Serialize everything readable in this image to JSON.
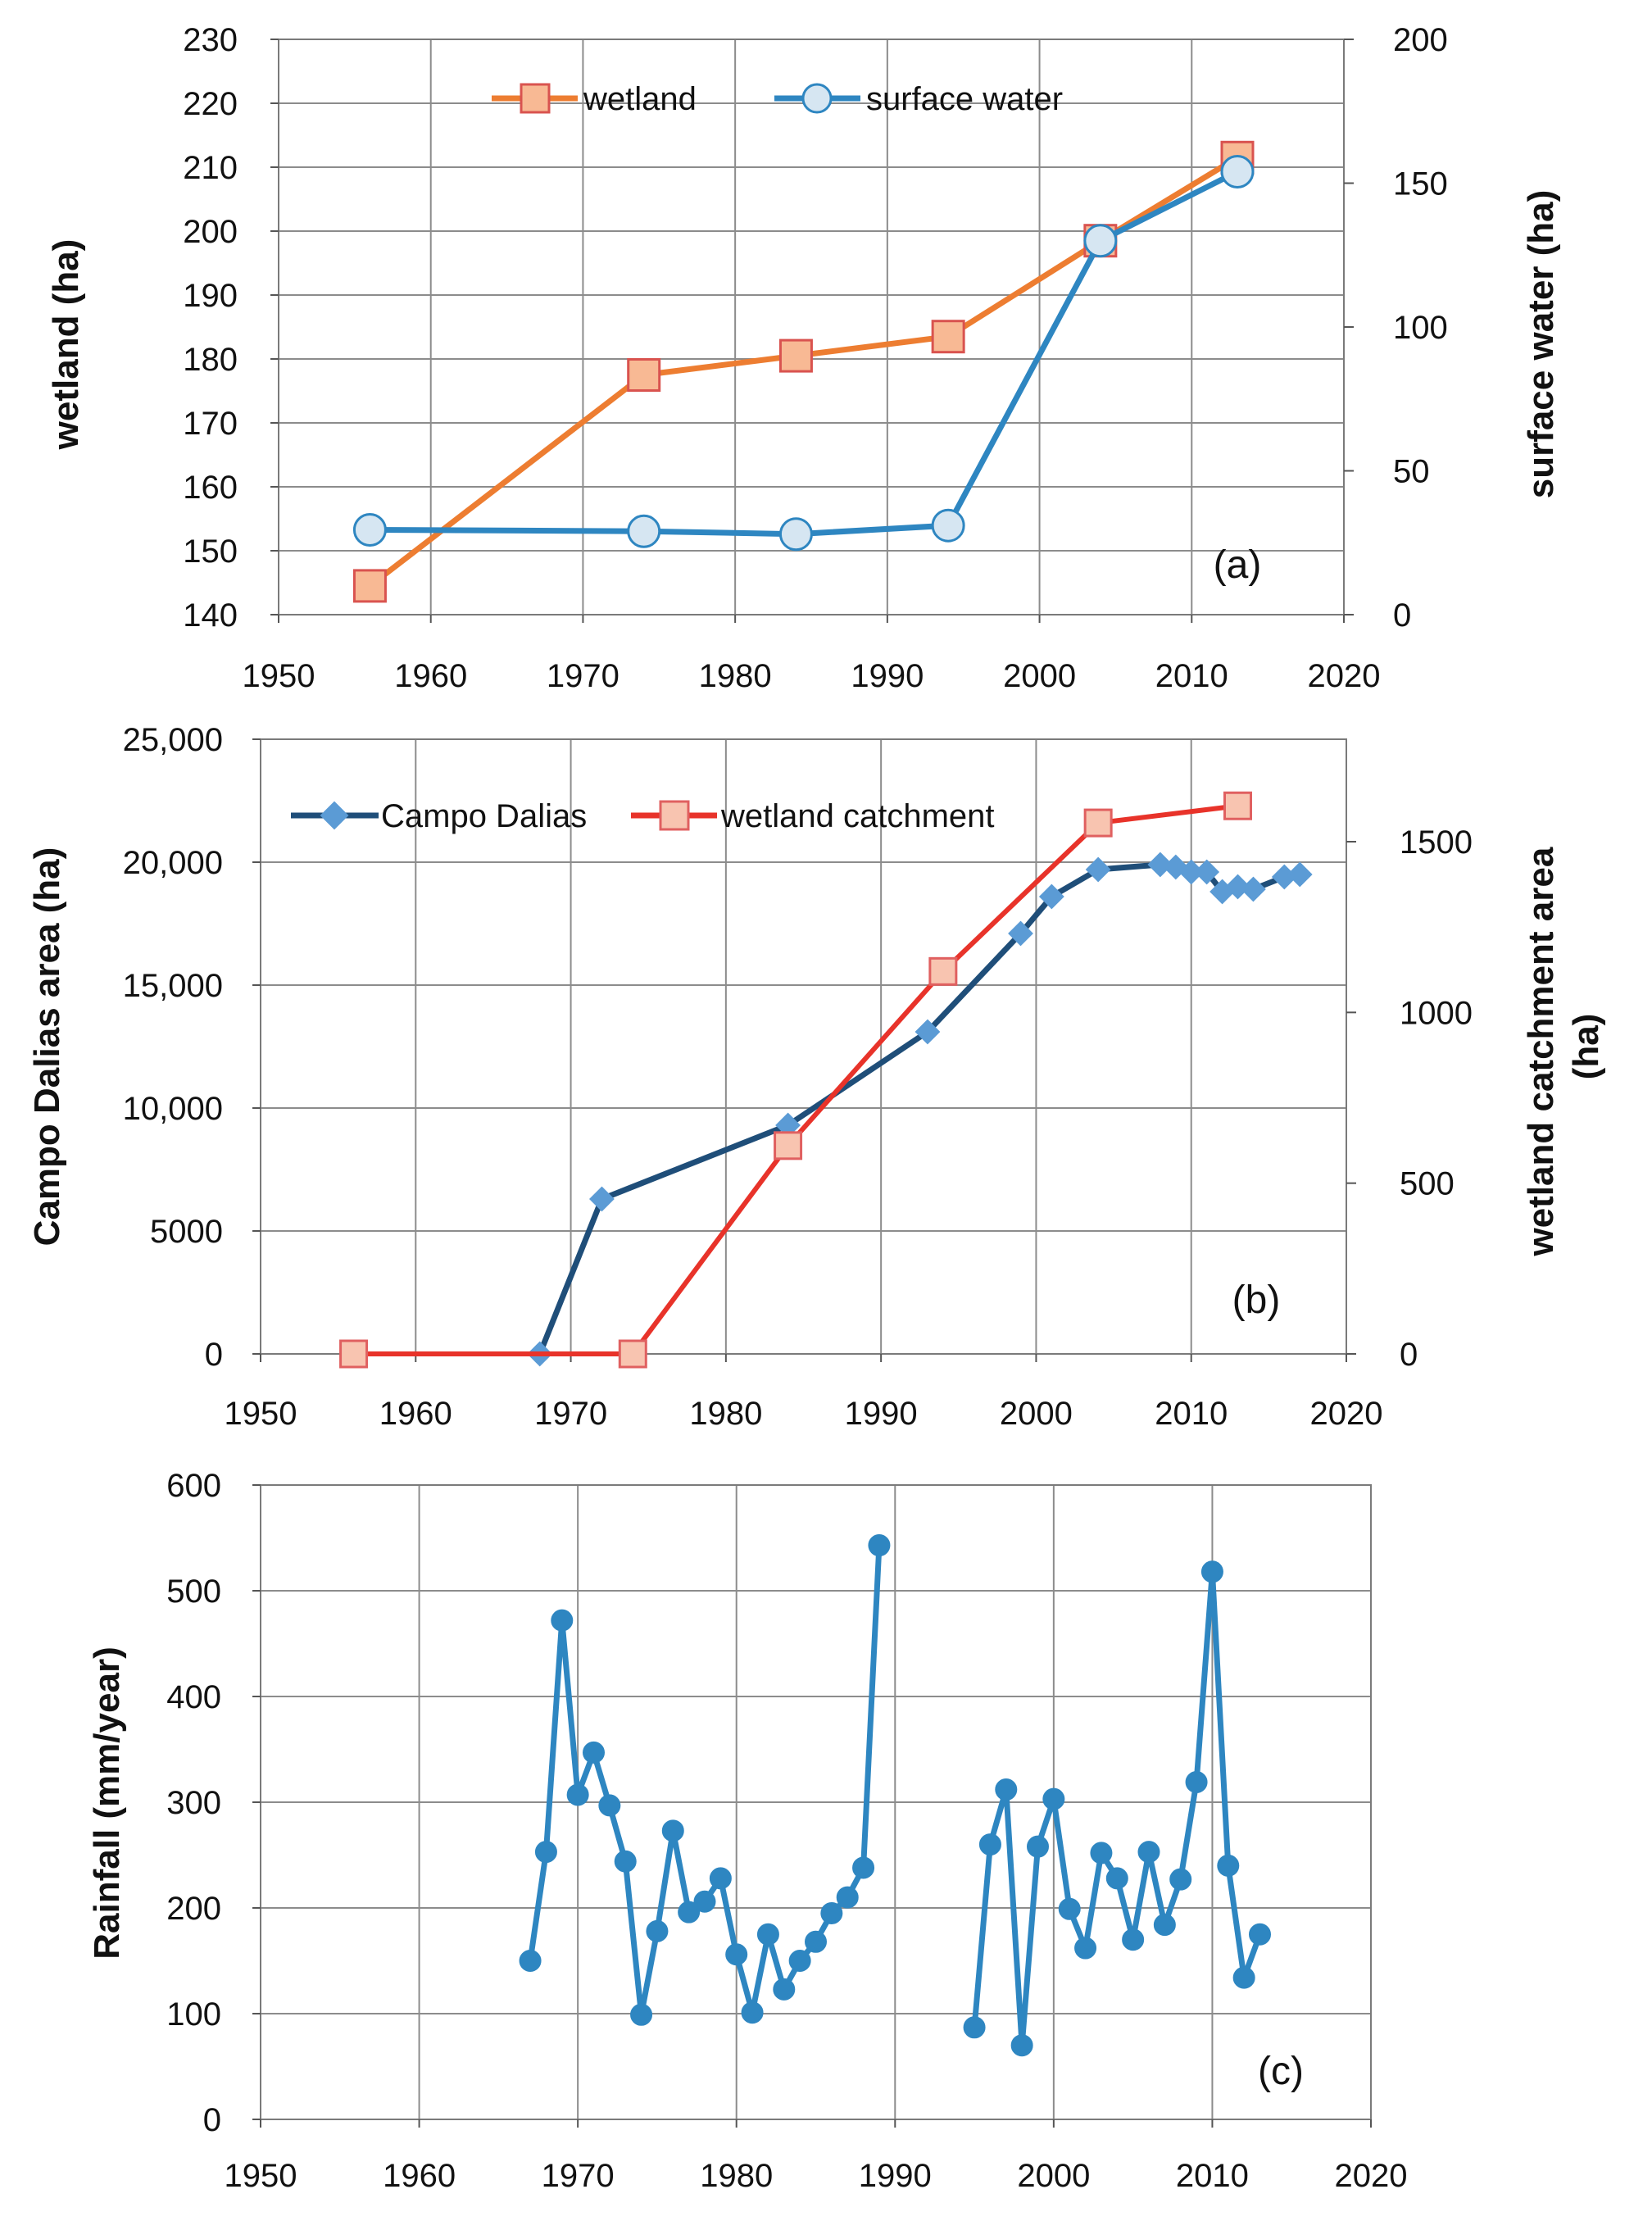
{
  "colors": {
    "wetland": "#ED7D31",
    "wetland_marker_fill": "#F8B994",
    "wetland_marker_stroke": "#D9534F",
    "surface_water": "#2E86C1",
    "surface_water_marker_fill": "#D6E6F2",
    "campo": "#1F4E79",
    "campo_marker": "#5B9BD5",
    "catchment": "#E8332A",
    "catchment_marker_fill": "#F8C4B0",
    "catchment_marker_stroke": "#E06060",
    "rainfall": "#2E86C1",
    "grid": "#8c8c8c"
  },
  "chart_data": [
    {
      "type": "line",
      "panel_label": "(a)",
      "xlim": [
        1950,
        2020
      ],
      "x_ticks": [
        1950,
        1960,
        1970,
        1980,
        1990,
        2000,
        2010,
        2020
      ],
      "ylabel": "wetland (ha)",
      "ylim": [
        140,
        230
      ],
      "y_ticks": [
        140,
        150,
        160,
        170,
        180,
        190,
        200,
        210,
        220,
        230
      ],
      "y2label": "surface water (ha)",
      "y2lim": [
        0,
        200
      ],
      "y2_ticks": [
        0,
        50,
        100,
        150,
        200
      ],
      "legend_position": "top-center",
      "series": [
        {
          "name": "wetland",
          "axis": "left",
          "marker": "square",
          "x": [
            1956,
            1974,
            1984,
            1994,
            2004,
            2013
          ],
          "values": [
            144.5,
            177.5,
            180.5,
            183.5,
            198.5,
            211.5
          ]
        },
        {
          "name": "surface water",
          "axis": "right",
          "marker": "circle",
          "x": [
            1956,
            1974,
            1984,
            1994,
            2004,
            2013
          ],
          "values": [
            29.5,
            29,
            28,
            31,
            130,
            154
          ]
        }
      ]
    },
    {
      "type": "line",
      "panel_label": "(b)",
      "xlim": [
        1950,
        2020
      ],
      "x_ticks": [
        1950,
        1960,
        1970,
        1980,
        1990,
        2000,
        2010,
        2020
      ],
      "ylabel": "Campo Dalias area (ha)",
      "ylim": [
        0,
        25000
      ],
      "y_ticks": [
        0,
        5000,
        10000,
        15000,
        20000,
        25000
      ],
      "y_tick_labels": [
        "0",
        "5000",
        "10,000",
        "15,000",
        "20,000",
        "25,000"
      ],
      "y2label": "wetland catchment area (ha)",
      "y2lim": [
        0,
        1800
      ],
      "y2_ticks": [
        0,
        500,
        1000,
        1500
      ],
      "legend_position": "top-left",
      "series": [
        {
          "name": "Campo Dalias",
          "axis": "left",
          "marker": "diamond",
          "x": [
            1968,
            1972,
            1984,
            1993,
            1999,
            2001,
            2004,
            2008,
            2009,
            2010,
            2011,
            2012,
            2013,
            2014,
            2016,
            2017
          ],
          "values": [
            0,
            6300,
            9300,
            13100,
            17100,
            18600,
            19700,
            19900,
            19800,
            19600,
            19600,
            18800,
            19000,
            18900,
            19400,
            19500
          ]
        },
        {
          "name": "wetland catchment",
          "axis": "right",
          "marker": "square",
          "x": [
            1956,
            1974,
            1984,
            1994,
            2004,
            2013
          ],
          "values": [
            0,
            0,
            610,
            1120,
            1555,
            1605
          ]
        }
      ]
    },
    {
      "type": "line",
      "panel_label": "(c)",
      "xlim": [
        1950,
        2020
      ],
      "x_ticks": [
        1950,
        1960,
        1970,
        1980,
        1990,
        2000,
        2010,
        2020
      ],
      "ylabel": "Rainfall (mm/year)",
      "ylim": [
        0,
        600
      ],
      "y_ticks": [
        0,
        100,
        200,
        300,
        400,
        500,
        600
      ],
      "series": [
        {
          "name": "rainfall",
          "axis": "left",
          "marker": "circle",
          "x": [
            1967,
            1968,
            1969,
            1970,
            1971,
            1972,
            1973,
            1974,
            1975,
            1976,
            1977,
            1978,
            1979,
            1980,
            1981,
            1982,
            1983,
            1984,
            1985,
            1986,
            1987,
            1988,
            1989
          ],
          "values": [
            150,
            253,
            472,
            307,
            347,
            297,
            244,
            99,
            178,
            273,
            196,
            206,
            228,
            156,
            101,
            175,
            123,
            150,
            168,
            195,
            210,
            238,
            543
          ]
        },
        {
          "name": "rainfall",
          "axis": "left",
          "marker": "circle",
          "x": [
            1995,
            1996,
            1997,
            1998,
            1999,
            2000,
            2001,
            2002,
            2003,
            2004,
            2005,
            2006,
            2007,
            2008,
            2009,
            2010,
            2011,
            2012,
            2013
          ],
          "values": [
            87,
            260,
            312,
            70,
            258,
            303,
            199,
            162,
            252,
            228,
            170,
            253,
            184,
            227,
            319,
            518,
            240,
            134,
            175
          ]
        }
      ]
    }
  ]
}
